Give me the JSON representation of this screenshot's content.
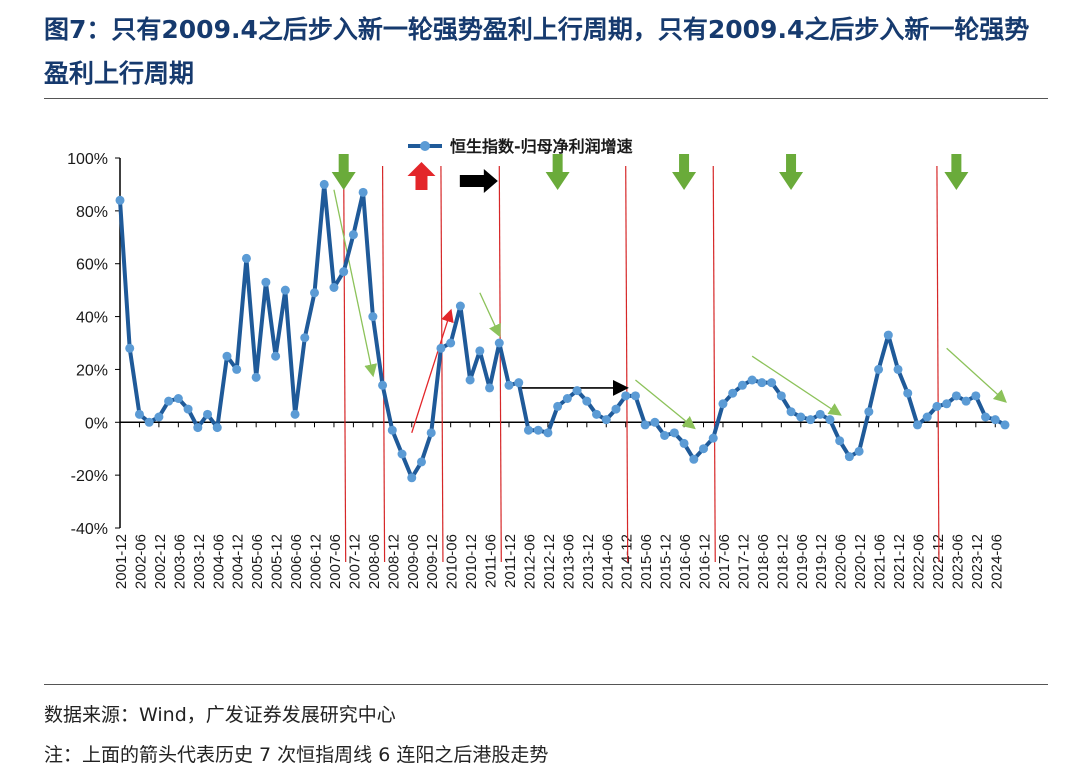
{
  "header": {
    "title": "图7：只有2009.4之后步入新一轮强势盈利上行周期，只有2009.4之后步入新一轮强势盈利上行周期"
  },
  "footer": {
    "source": "数据来源：Wind，广发证券发展研究中心",
    "note": "注：上面的箭头代表历史 7 次恒指周线 6 连阳之后港股走势"
  },
  "colors": {
    "line": "#1f5a99",
    "marker": "#5b9bd5",
    "vline": "#d62728",
    "down_arrow": "#6aab3a",
    "up_arrow": "#e3262a",
    "right_arrow": "#000000",
    "trend_green": "#8cc25a",
    "trend_red": "#e3262a"
  },
  "chart_data": {
    "type": "line",
    "title": "",
    "xlabel": "",
    "ylabel": "",
    "ylim": [
      -40,
      100
    ],
    "y_ticks": [
      -40,
      -20,
      0,
      20,
      40,
      60,
      80,
      100
    ],
    "y_tick_labels": [
      "-40%",
      "-20%",
      "0%",
      "20%",
      "40%",
      "60%",
      "80%",
      "100%"
    ],
    "grid": false,
    "legend_position": "top-center",
    "x_tick_labels": [
      "2001-12",
      "2002-06",
      "2002-12",
      "2003-06",
      "2003-12",
      "2004-06",
      "2004-12",
      "2005-06",
      "2005-12",
      "2006-06",
      "2006-12",
      "2007-06",
      "2007-12",
      "2008-06",
      "2008-12",
      "2009-06",
      "2009-12",
      "2010-06",
      "2010-12",
      "2011-06",
      "2011-12",
      "2012-06",
      "2012-12",
      "2013-06",
      "2013-12",
      "2014-06",
      "2014-12",
      "2015-06",
      "2015-12",
      "2016-06",
      "2016-12",
      "2017-06",
      "2017-12",
      "2018-06",
      "2018-12",
      "2019-06",
      "2019-12",
      "2020-06",
      "2020-12",
      "2021-06",
      "2021-12",
      "2022-06",
      "2022-12",
      "2023-06",
      "2023-12",
      "2024-06"
    ],
    "series": [
      {
        "name": "恒生指数-归母净利润增速",
        "values": [
          84,
          28,
          3,
          0,
          2,
          8,
          9,
          5,
          -2,
          3,
          -2,
          25,
          20,
          62,
          17,
          53,
          25,
          50,
          3,
          32,
          49,
          90,
          51,
          57,
          71,
          87,
          40,
          14,
          -3,
          -12,
          -21,
          -15,
          -4,
          28,
          30,
          44,
          16,
          27,
          13,
          30,
          14,
          15,
          -3,
          -3,
          -4,
          6,
          9,
          12,
          8,
          3,
          1,
          5,
          10,
          10,
          -1,
          0,
          -5,
          -4,
          -8,
          -14,
          -10,
          -6,
          7,
          11,
          14,
          16,
          15,
          15,
          10,
          4,
          2,
          1,
          3,
          1,
          -7,
          -13,
          -11,
          4,
          20,
          33,
          20,
          11,
          -1,
          2,
          6,
          7,
          10,
          8,
          10,
          2,
          1,
          -1
        ]
      }
    ],
    "x_start_quarter": "2001-12",
    "x_step": "quarter",
    "event_vlines": [
      "2007-09",
      "2008-09",
      "2010-03",
      "2011-09",
      "2014-12",
      "2017-03",
      "2022-12"
    ],
    "signal_arrows": [
      {
        "at": "2007-09",
        "kind": "down"
      },
      {
        "at": "2009-09",
        "kind": "up"
      },
      {
        "at": "2011-03",
        "kind": "right"
      },
      {
        "at": "2013-03",
        "kind": "down"
      },
      {
        "at": "2016-06",
        "kind": "down"
      },
      {
        "at": "2019-03",
        "kind": "down"
      },
      {
        "at": "2023-06",
        "kind": "down"
      }
    ],
    "trend_arrows": [
      {
        "from": [
          "2007-06",
          88
        ],
        "to": [
          "2008-06",
          18
        ],
        "kind": "green"
      },
      {
        "from": [
          "2009-06",
          -4
        ],
        "to": [
          "2010-06",
          42
        ],
        "kind": "red"
      },
      {
        "from": [
          "2011-03",
          49
        ],
        "to": [
          "2011-09",
          33
        ],
        "kind": "green"
      },
      {
        "from": [
          "2012-03",
          13
        ],
        "to": [
          "2014-12",
          13
        ],
        "kind": "black"
      },
      {
        "from": [
          "2015-03",
          16
        ],
        "to": [
          "2016-09",
          -2
        ],
        "kind": "green"
      },
      {
        "from": [
          "2018-03",
          25
        ],
        "to": [
          "2020-06",
          3
        ],
        "kind": "green"
      },
      {
        "from": [
          "2023-03",
          28
        ],
        "to": [
          "2024-09",
          8
        ],
        "kind": "green"
      }
    ]
  }
}
